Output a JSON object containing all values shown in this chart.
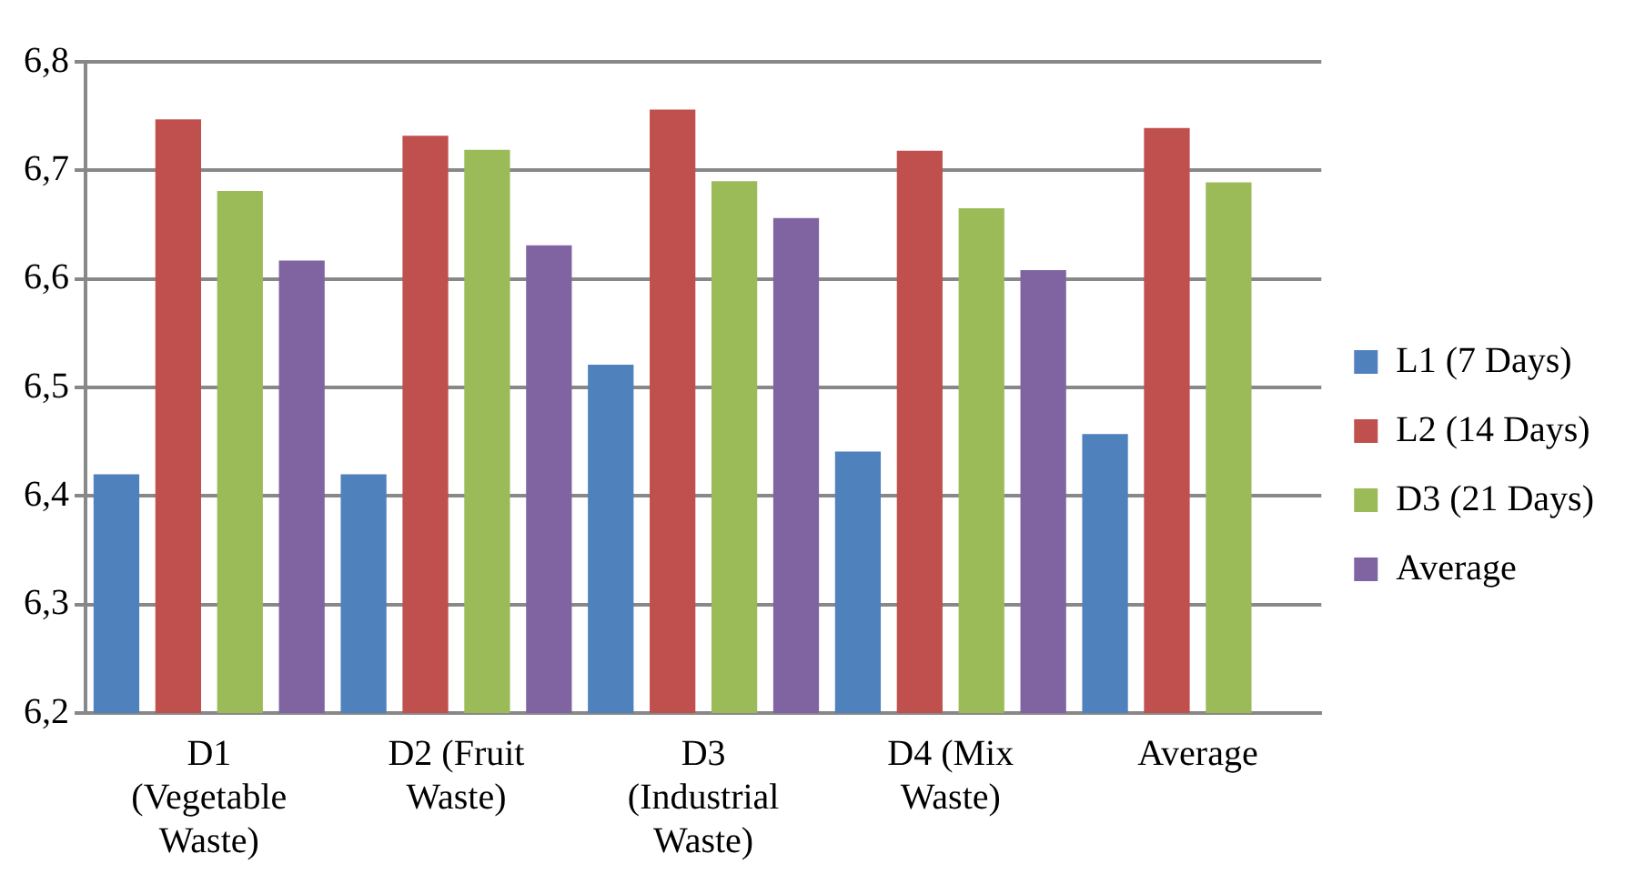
{
  "chart_data": {
    "type": "bar",
    "categories": [
      "D1 (Vegetable Waste)",
      "D2 (Fruit Waste)",
      "D3 (Industrial Waste)",
      "D4 (Mix Waste)",
      "Average"
    ],
    "series": [
      {
        "name": "L1 (7 Days)",
        "color": "#4f81bd",
        "values": [
          6.42,
          6.42,
          6.521,
          6.441,
          6.457
        ]
      },
      {
        "name": "L2 (14 Days)",
        "color": "#c0504d",
        "values": [
          6.747,
          6.732,
          6.756,
          6.718,
          6.739
        ]
      },
      {
        "name": "D3 (21 Days)",
        "color": "#9bbb59",
        "values": [
          6.681,
          6.719,
          6.69,
          6.665,
          6.689
        ]
      },
      {
        "name": "Average",
        "color": "#8064a2",
        "values": [
          6.617,
          6.631,
          6.656,
          6.608,
          null
        ]
      }
    ],
    "ylim": [
      6.2,
      6.8
    ],
    "yticks": [
      {
        "value": 6.2,
        "label": "6,2"
      },
      {
        "value": 6.3,
        "label": "6,3"
      },
      {
        "value": 6.4,
        "label": "6,4"
      },
      {
        "value": 6.5,
        "label": "6,5"
      },
      {
        "value": 6.6,
        "label": "6,6"
      },
      {
        "value": 6.7,
        "label": "6,7"
      },
      {
        "value": 6.8,
        "label": "6,8"
      }
    ],
    "grid": "y",
    "legend": "right"
  }
}
